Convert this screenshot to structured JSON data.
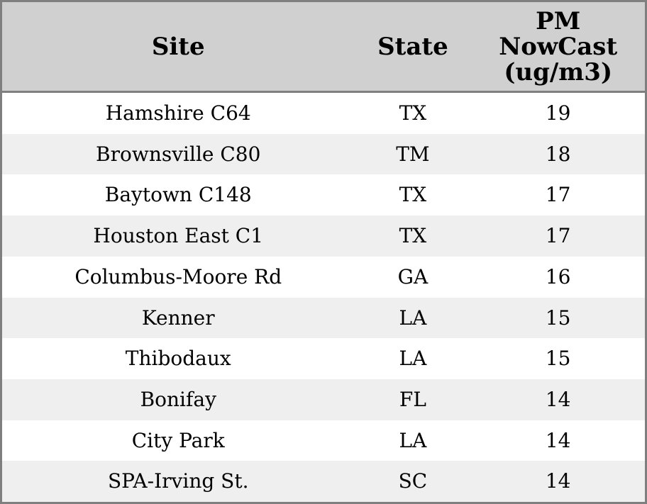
{
  "headers": {
    "site": "Site",
    "state": "State",
    "pm": "PM\nNowCast\n(ug/m3)"
  },
  "chart_data": {
    "type": "table",
    "columns": [
      "Site",
      "State",
      "PM NowCast (ug/m3)"
    ],
    "rows": [
      [
        "Hamshire C64",
        "TX",
        19
      ],
      [
        "Brownsville C80",
        "TM",
        18
      ],
      [
        "Baytown C148",
        "TX",
        17
      ],
      [
        "Houston East C1",
        "TX",
        17
      ],
      [
        "Columbus-Moore Rd",
        "GA",
        16
      ],
      [
        "Kenner",
        "LA",
        15
      ],
      [
        "Thibodaux",
        "LA",
        15
      ],
      [
        "Bonifay",
        "FL",
        14
      ],
      [
        "City Park",
        "LA",
        14
      ],
      [
        "SPA-Irving St.",
        "SC",
        14
      ]
    ]
  },
  "colors": {
    "header_bg": "#d0d0d0",
    "row_alt_bg": "#efefef",
    "row_bg": "#ffffff",
    "border": "#7f7f7f",
    "text": "#000000"
  }
}
